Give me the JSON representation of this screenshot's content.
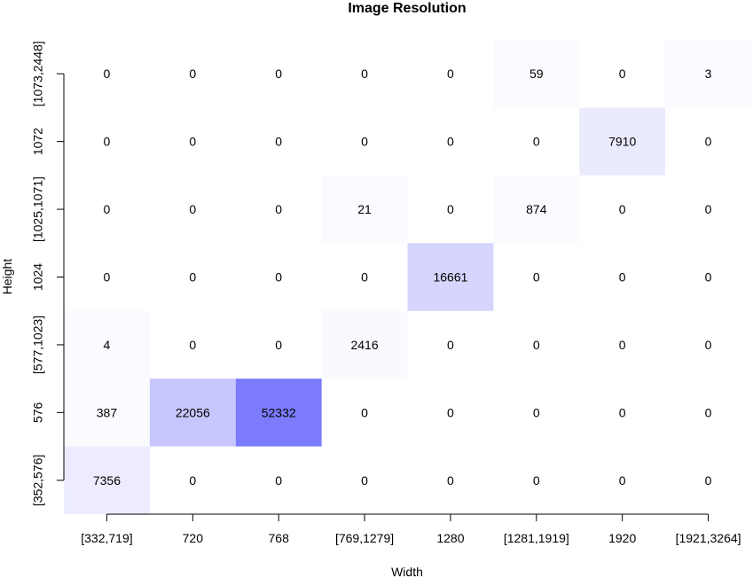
{
  "chart_data": {
    "type": "heatmap",
    "title": "Image Resolution",
    "xlabel": "Width",
    "ylabel": "Height",
    "x_categories": [
      "[332,719]",
      "720",
      "768",
      "[769,1279]",
      "1280",
      "[1281,1919]",
      "1920",
      "[1921,3264]"
    ],
    "y_categories": [
      "[352,576]",
      "576",
      "[577,1023]",
      "1024",
      "[1025,1071]",
      "1072",
      "[1073,2448]"
    ],
    "values": [
      [
        7356,
        0,
        0,
        0,
        0,
        0,
        0,
        0
      ],
      [
        387,
        22056,
        52332,
        0,
        0,
        0,
        0,
        0
      ],
      [
        4,
        0,
        0,
        2416,
        0,
        0,
        0,
        0
      ],
      [
        0,
        0,
        0,
        0,
        16661,
        0,
        0,
        0
      ],
      [
        0,
        0,
        0,
        21,
        0,
        874,
        0,
        0
      ],
      [
        0,
        0,
        0,
        0,
        0,
        0,
        7910,
        0
      ],
      [
        0,
        0,
        0,
        0,
        0,
        59,
        0,
        3
      ]
    ],
    "color_low": "#ffffff",
    "color_high": "#7b7bfb",
    "legend": "none"
  }
}
